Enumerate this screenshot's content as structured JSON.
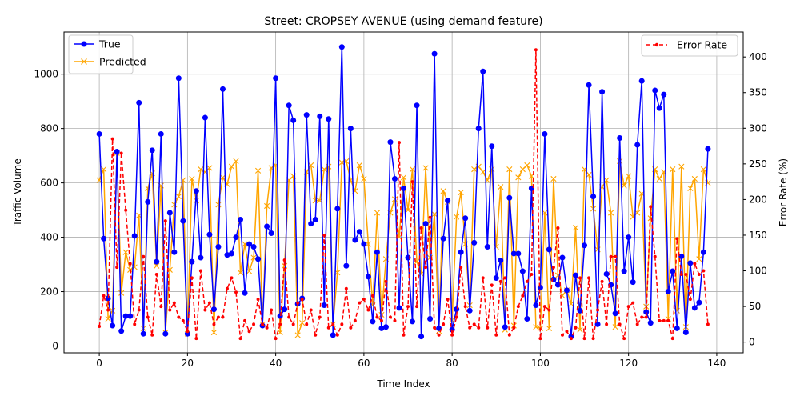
{
  "chart_data": {
    "type": "line",
    "title": "Street: CROPSEY AVENUE (using demand feature)",
    "xlabel": "Time Index",
    "ylabel": "Traffic Volume",
    "y2label": "Error Rate (%)",
    "xlim": [
      -8,
      146
    ],
    "ylim": [
      -25,
      1155
    ],
    "y2lim": [
      -15,
      435
    ],
    "xticks": [
      0,
      20,
      40,
      60,
      80,
      100,
      120,
      140
    ],
    "yticks": [
      0,
      200,
      400,
      600,
      800,
      1000
    ],
    "y2ticks": [
      0,
      50,
      100,
      150,
      200,
      250,
      300,
      350,
      400
    ],
    "grid": true,
    "legend_left_placement": "upper-left",
    "legend_right_placement": "upper-right",
    "colors": {
      "true": "#0000ff",
      "predicted": "#ffa500",
      "error": "#ff0000"
    },
    "series": [
      {
        "name": "True",
        "axis": "left",
        "style": "line-circle",
        "color": "#0000ff",
        "values": [
          780,
          395,
          175,
          75,
          715,
          55,
          110,
          110,
          405,
          895,
          45,
          530,
          720,
          310,
          780,
          45,
          490,
          345,
          985,
          460,
          45,
          310,
          570,
          325,
          840,
          410,
          135,
          365,
          945,
          335,
          340,
          400,
          465,
          195,
          375,
          365,
          320,
          75,
          440,
          415,
          985,
          110,
          135,
          885,
          830,
          155,
          175,
          850,
          450,
          465,
          845,
          150,
          835,
          40,
          505,
          1100,
          295,
          800,
          390,
          420,
          375,
          255,
          90,
          345,
          65,
          70,
          750,
          615,
          140,
          580,
          325,
          90,
          885,
          35,
          450,
          100,
          1075,
          65,
          395,
          535,
          60,
          135,
          345,
          470,
          130,
          380,
          800,
          1010,
          365,
          735,
          250,
          315,
          70,
          545,
          340,
          340,
          275,
          100,
          580,
          150,
          215,
          780,
          355,
          245,
          225,
          325,
          205,
          35,
          260,
          130,
          370,
          960,
          550,
          80,
          935,
          265,
          225,
          120,
          765,
          275,
          400,
          235,
          740,
          975,
          125,
          85,
          940,
          875,
          925,
          200,
          275,
          65,
          330,
          50,
          305,
          140,
          160,
          345,
          725
        ]
      },
      {
        "name": "Predicted",
        "axis": "left",
        "style": "line-x",
        "color": "#ffa500",
        "values": [
          610,
          650,
          100,
          130,
          710,
          195,
          345,
          280,
          290,
          480,
          65,
          580,
          635,
          295,
          590,
          50,
          280,
          520,
          550,
          610,
          45,
          615,
          535,
          650,
          640,
          655,
          50,
          520,
          620,
          595,
          660,
          680,
          270,
          375,
          275,
          325,
          645,
          80,
          515,
          655,
          665,
          50,
          295,
          610,
          625,
          40,
          85,
          640,
          665,
          535,
          535,
          650,
          660,
          80,
          270,
          675,
          680,
          610,
          570,
          665,
          615,
          375,
          150,
          490,
          115,
          320,
          490,
          540,
          400,
          620,
          500,
          650,
          310,
          265,
          655,
          325,
          485,
          55,
          570,
          530,
          95,
          475,
          565,
          375,
          150,
          650,
          660,
          640,
          610,
          650,
          365,
          585,
          60,
          650,
          75,
          620,
          650,
          665,
          625,
          70,
          65,
          490,
          65,
          615,
          260,
          185,
          205,
          155,
          435,
          60,
          650,
          630,
          505,
          355,
          585,
          610,
          490,
          70,
          680,
          590,
          625,
          475,
          490,
          560,
          145,
          470,
          650,
          615,
          640,
          100,
          650,
          130,
          660,
          70,
          580,
          615,
          320,
          650,
          600
        ]
      },
      {
        "name": "Error Rate",
        "axis": "right",
        "style": "dashed-dot",
        "color": "#ff0000",
        "values": [
          22,
          65,
          45,
          285,
          105,
          265,
          185,
          110,
          25,
          45,
          120,
          35,
          10,
          95,
          50,
          170,
          45,
          55,
          35,
          30,
          15,
          90,
          5,
          100,
          45,
          55,
          25,
          35,
          35,
          75,
          90,
          70,
          5,
          30,
          15,
          25,
          60,
          25,
          20,
          45,
          5,
          25,
          115,
          35,
          25,
          55,
          60,
          25,
          45,
          10,
          35,
          150,
          20,
          25,
          10,
          25,
          75,
          20,
          30,
          55,
          60,
          45,
          65,
          35,
          30,
          85,
          35,
          30,
          280,
          10,
          50,
          225,
          50,
          160,
          105,
          175,
          20,
          10,
          25,
          60,
          10,
          35,
          105,
          50,
          20,
          25,
          20,
          90,
          20,
          80,
          10,
          85,
          90,
          10,
          20,
          50,
          65,
          85,
          95,
          410,
          5,
          50,
          45,
          105,
          160,
          10,
          15,
          5,
          20,
          90,
          5,
          90,
          5,
          45,
          85,
          25,
          120,
          120,
          25,
          5,
          50,
          55,
          25,
          35,
          35,
          190,
          120,
          30,
          30,
          30,
          5,
          145,
          95,
          95,
          60,
          110,
          95,
          100,
          25
        ]
      }
    ]
  }
}
